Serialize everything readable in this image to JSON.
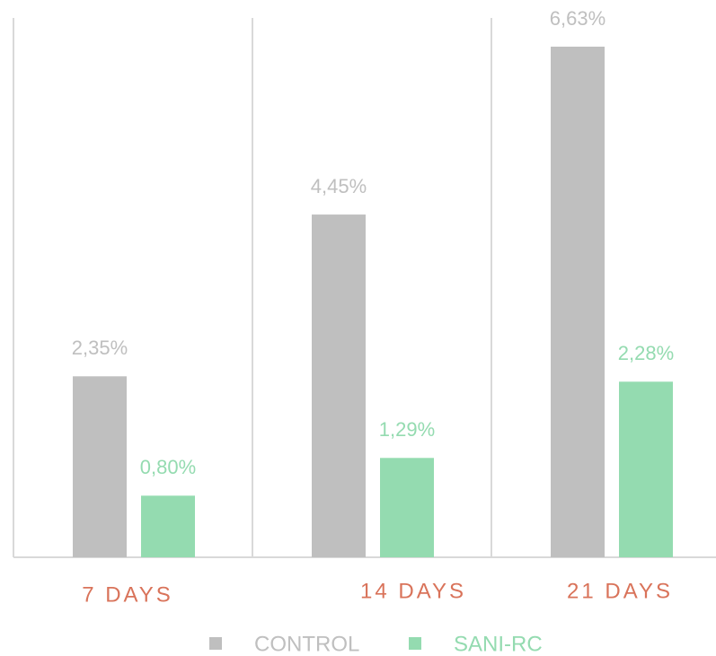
{
  "chart_data": {
    "type": "bar",
    "categories": [
      "7 DAYS",
      "14 DAYS",
      "21 DAYS"
    ],
    "series": [
      {
        "name": "CONTROL",
        "color": "#bfbfbf",
        "values": [
          2.35,
          4.45,
          6.63
        ],
        "value_labels": [
          "2,35%",
          "4,45%",
          "6,63%"
        ]
      },
      {
        "name": "SANI-RC",
        "color": "#94dbb0",
        "values": [
          0.8,
          1.29,
          2.28
        ],
        "value_labels": [
          "0,80%",
          "1,29%",
          "2,28%"
        ]
      }
    ],
    "legend": "bottom"
  }
}
